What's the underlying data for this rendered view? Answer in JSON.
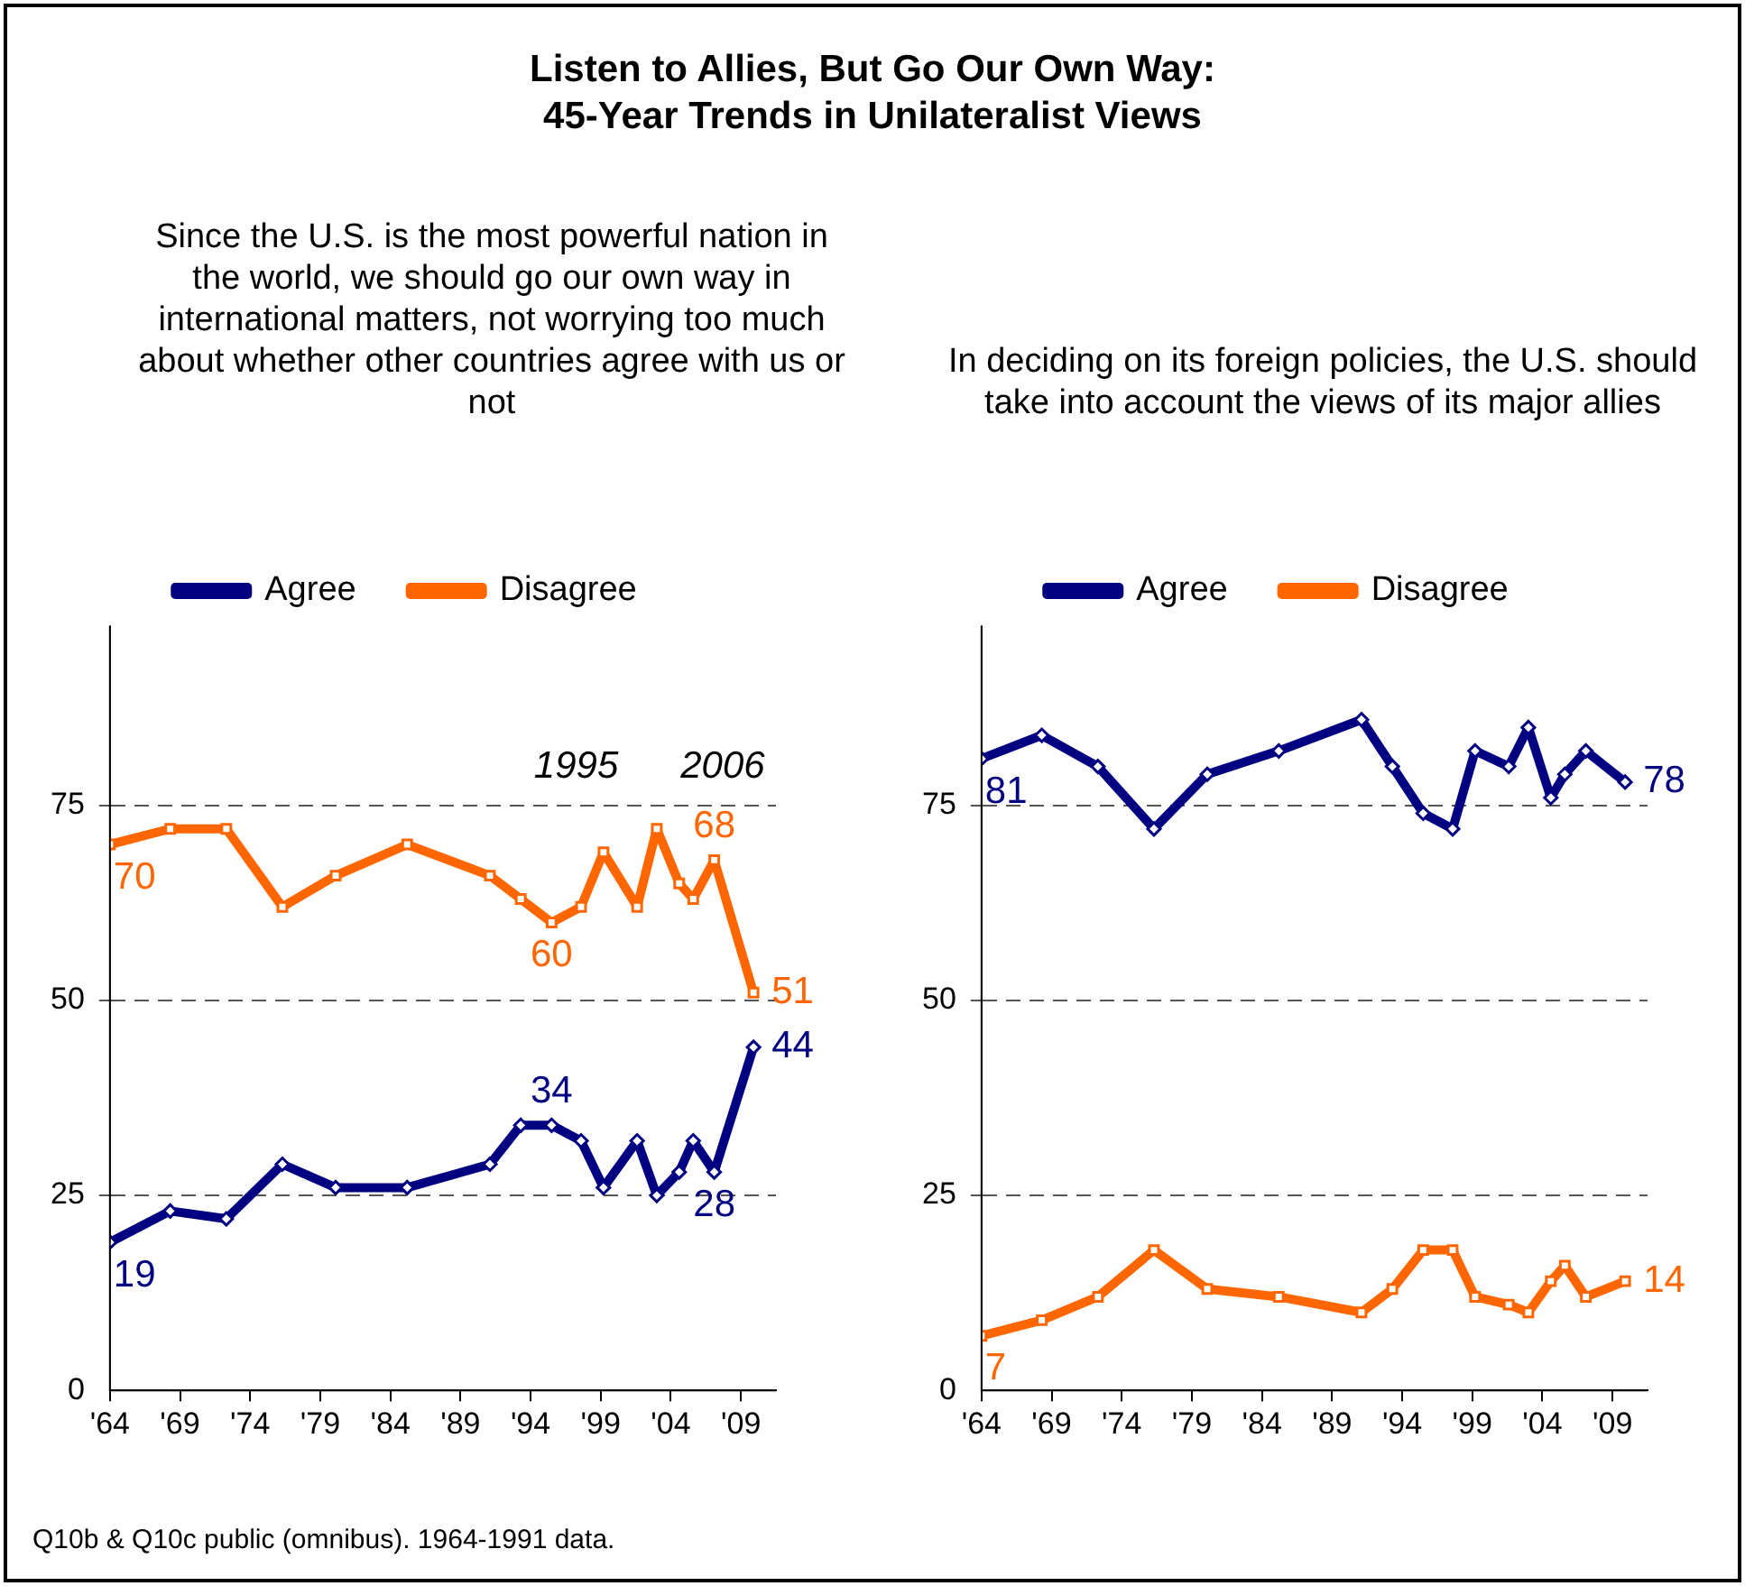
{
  "chart_data": [
    {
      "type": "line",
      "title": "Listen to Allies, But Go Our Own Way:\n45-Year Trends in Unilateralist Views",
      "subtitle": "Since the U.S. is the most powerful nation in the world, we should go our own way in international matters, not worrying too much about whether other countries agree with us or not",
      "x": [
        1964,
        1968.3,
        1972.3,
        1976.3,
        1980.1,
        1985.2,
        1991.1,
        1993.3,
        1995.5,
        1997.6,
        1999.2,
        2001.6,
        2003,
        2004.6,
        2005.6,
        2007.1,
        2009.9
      ],
      "series": [
        {
          "name": "Agree",
          "color": "#000080",
          "marker": "diamond",
          "values": [
            19,
            23,
            22,
            29,
            26,
            26,
            29,
            34,
            34,
            32,
            26,
            32,
            25,
            28,
            32,
            28,
            44
          ],
          "value_labels": [
            "19",
            null,
            null,
            null,
            null,
            null,
            null,
            null,
            "34",
            null,
            null,
            null,
            null,
            null,
            null,
            "28",
            "44"
          ]
        },
        {
          "name": "Disagree",
          "color": "#ff6600",
          "marker": "square",
          "values": [
            70,
            72,
            72,
            62,
            66,
            70,
            66,
            63,
            60,
            62,
            69,
            62,
            72,
            65,
            63,
            68,
            51
          ],
          "value_labels": [
            "70",
            null,
            null,
            null,
            null,
            null,
            null,
            null,
            "60",
            null,
            null,
            null,
            null,
            null,
            null,
            "68",
            "51"
          ]
        }
      ],
      "xlim": [
        1964,
        2011.5
      ],
      "xticks": [
        {
          "value": 1964,
          "label": "'64"
        },
        {
          "value": 1969,
          "label": "'69"
        },
        {
          "value": 1974,
          "label": "'74"
        },
        {
          "value": 1979,
          "label": "'79"
        },
        {
          "value": 1984,
          "label": "'84"
        },
        {
          "value": 1989,
          "label": "'89"
        },
        {
          "value": 1994,
          "label": "'94"
        },
        {
          "value": 1999,
          "label": "'99"
        },
        {
          "value": 2004,
          "label": "'04"
        },
        {
          "value": 2009,
          "label": "'09"
        }
      ],
      "ylim": [
        0,
        98
      ],
      "yticks": [
        0,
        25,
        50,
        75
      ],
      "grid": "y",
      "line_style": "solid",
      "legend": "top",
      "annotations": [
        "1995",
        "2006",
        "Q10b & Q10c public (omnibus). 1964-1991 data."
      ]
    },
    {
      "type": "line",
      "subtitle": "In deciding on its foreign policies, the U.S. should take into account the views of its major allies",
      "x": [
        1964,
        1968.3,
        1972.3,
        1976.3,
        1980.1,
        1985.2,
        1991.1,
        1993.3,
        1995.5,
        1997.6,
        1999.2,
        2001.6,
        2003,
        2004.6,
        2005.6,
        2007.1,
        2009.9
      ],
      "series": [
        {
          "name": "Agree",
          "color": "#000080",
          "marker": "diamond",
          "values": [
            81,
            84,
            80,
            72,
            79,
            82,
            86,
            80,
            74,
            72,
            82,
            80,
            85,
            76,
            79,
            82,
            78
          ],
          "value_labels": [
            "81",
            null,
            null,
            null,
            null,
            null,
            null,
            null,
            null,
            null,
            null,
            null,
            null,
            null,
            null,
            null,
            "78"
          ]
        },
        {
          "name": "Disagree",
          "color": "#ff6600",
          "marker": "square",
          "values": [
            7,
            9,
            12,
            18,
            13,
            12,
            10,
            13,
            18,
            18,
            12,
            11,
            10,
            14,
            16,
            12,
            14
          ],
          "value_labels": [
            "7",
            null,
            null,
            null,
            null,
            null,
            null,
            null,
            null,
            null,
            null,
            null,
            null,
            null,
            null,
            null,
            "14"
          ]
        }
      ],
      "xlim": [
        1964,
        2011.5
      ],
      "xticks": [
        {
          "value": 1964,
          "label": "'64"
        },
        {
          "value": 1969,
          "label": "'69"
        },
        {
          "value": 1974,
          "label": "'74"
        },
        {
          "value": 1979,
          "label": "'79"
        },
        {
          "value": 1984,
          "label": "'84"
        },
        {
          "value": 1989,
          "label": "'89"
        },
        {
          "value": 1994,
          "label": "'94"
        },
        {
          "value": 1999,
          "label": "'99"
        },
        {
          "value": 2004,
          "label": "'04"
        },
        {
          "value": 2009,
          "label": "'09"
        }
      ],
      "ylim": [
        0,
        98
      ],
      "yticks": [
        0,
        25,
        50,
        75
      ],
      "grid": "y",
      "line_style": "solid",
      "legend": "top"
    }
  ]
}
